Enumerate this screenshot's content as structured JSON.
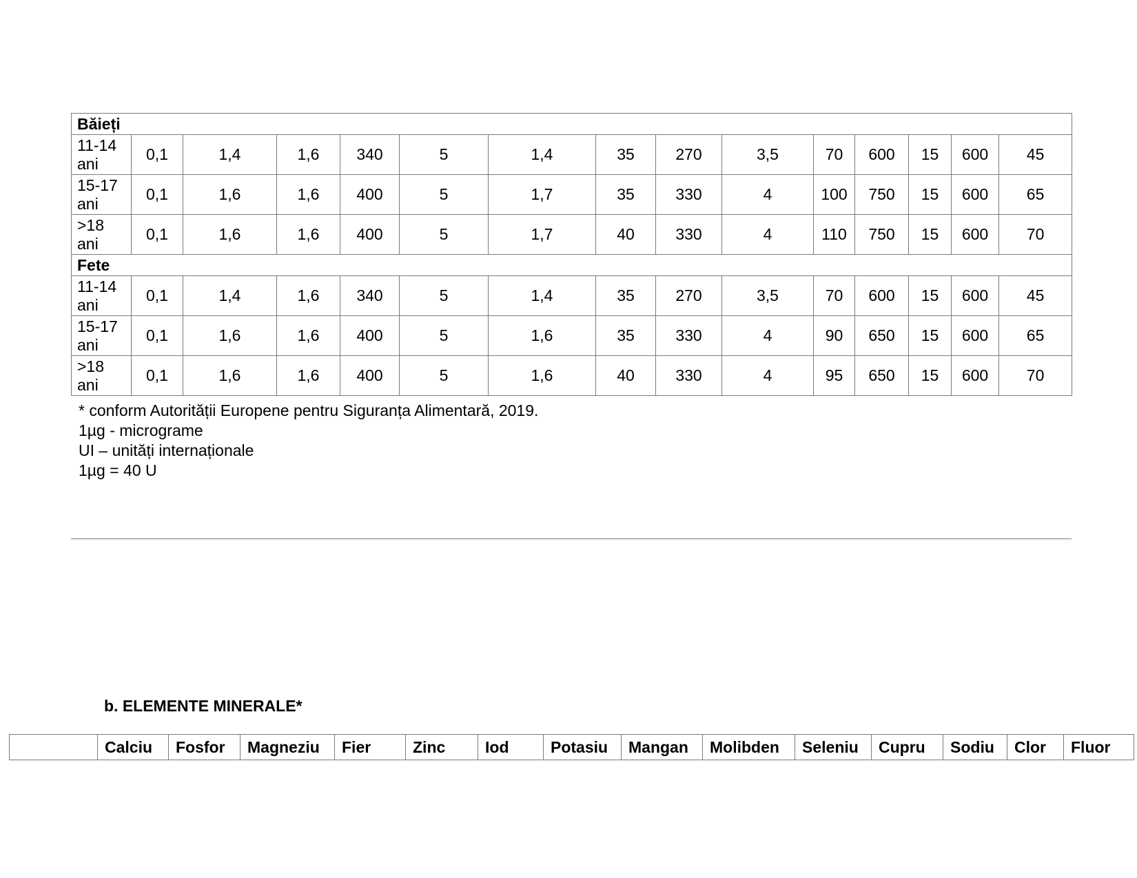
{
  "sections": [
    {
      "title": "Băieți",
      "rows": [
        {
          "label": "11-14 ani",
          "values": [
            "0,1",
            "1,4",
            "1,6",
            "340",
            "5",
            "1,4",
            "35",
            "270",
            "3,5",
            "70",
            "600",
            "15",
            "600",
            "45"
          ]
        },
        {
          "label": "15-17 ani",
          "values": [
            "0,1",
            "1,6",
            "1,6",
            "400",
            "5",
            "1,7",
            "35",
            "330",
            "4",
            "100",
            "750",
            "15",
            "600",
            "65"
          ]
        },
        {
          "label": ">18 ani",
          "values": [
            "0,1",
            "1,6",
            "1,6",
            "400",
            "5",
            "1,7",
            "40",
            "330",
            "4",
            "110",
            "750",
            "15",
            "600",
            "70"
          ]
        }
      ]
    },
    {
      "title": "Fete",
      "rows": [
        {
          "label": "11-14 ani",
          "values": [
            "0,1",
            "1,4",
            "1,6",
            "340",
            "5",
            "1,4",
            "35",
            "270",
            "3,5",
            "70",
            "600",
            "15",
            "600",
            "45"
          ]
        },
        {
          "label": "15-17 ani",
          "values": [
            "0,1",
            "1,6",
            "1,6",
            "400",
            "5",
            "1,6",
            "35",
            "330",
            "4",
            "90",
            "650",
            "15",
            "600",
            "65"
          ]
        },
        {
          "label": ">18 ani",
          "values": [
            "0,1",
            "1,6",
            "1,6",
            "400",
            "5",
            "1,6",
            "40",
            "330",
            "4",
            "95",
            "650",
            "15",
            "600",
            "70"
          ]
        }
      ]
    }
  ],
  "notes": [
    "* conform Autorității Europene pentru Siguranța Alimentară, 2019.",
    "1µg - micrograme",
    "UI – unități internaționale",
    "1µg = 40 U"
  ],
  "minerals": {
    "heading": "b. ELEMENTE MINERALE*",
    "headers": [
      "",
      "Calciu",
      "Fosfor",
      "Magneziu",
      "Fier",
      "Zinc",
      "Iod",
      "Potasiu",
      "Mangan",
      "Molibden",
      "Seleniu",
      "Cupru",
      "Sodiu",
      "Clor",
      "Fluor"
    ]
  }
}
